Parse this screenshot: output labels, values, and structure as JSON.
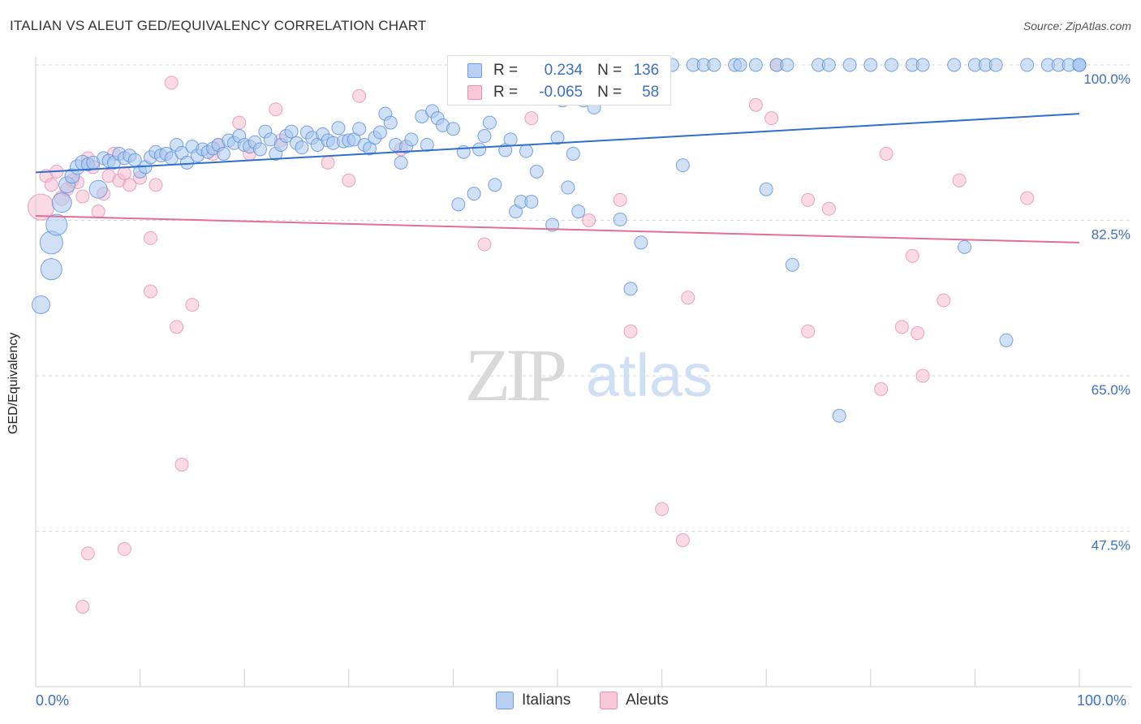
{
  "title": "ITALIAN VS ALEUT GED/EQUIVALENCY CORRELATION CHART",
  "source": "Source: ZipAtlas.com",
  "watermark": {
    "zip": "ZIP",
    "atlas": "atlas"
  },
  "colors": {
    "blue": "#3b70c4",
    "blue_fill": "#a9c8ef",
    "blue_line": "#2f6fd0",
    "pink": "#e05a8a",
    "pink_fill": "#f6bcd0",
    "pink_line": "#e56d96",
    "grid": "#d8d8d8"
  },
  "legend": {
    "rows": [
      {
        "r_label": "R =",
        "r_value": "0.234",
        "n_label": "N =",
        "n_value": "136",
        "series": "Italians"
      },
      {
        "r_label": "R =",
        "r_value": "-0.065",
        "n_label": "N =",
        "n_value": "58",
        "series": "Aleuts"
      }
    ]
  },
  "bottom_legend": [
    "Italians",
    "Aleuts"
  ],
  "chart_data": {
    "type": "scatter",
    "title": "ITALIAN VS ALEUT GED/EQUIVALENCY CORRELATION CHART",
    "xlabel": "",
    "ylabel": "GED/Equivalency",
    "xlim": [
      0,
      100
    ],
    "ylim": [
      30,
      101
    ],
    "x_tick_labels": [
      "0.0%",
      "100.0%"
    ],
    "y_tick_labels": [
      "100.0%",
      "82.5%",
      "65.0%",
      "47.5%"
    ],
    "y_ticks": [
      100,
      82.5,
      65,
      47.5
    ],
    "grid": "horizontal dashed",
    "legend_position": "top-center",
    "series": [
      {
        "name": "Italians",
        "trend": {
          "x": [
            0,
            100
          ],
          "y": [
            87.9,
            94.5
          ]
        },
        "points": [
          [
            0.5,
            73.0,
            11
          ],
          [
            1.5,
            77.0,
            13
          ],
          [
            1.5,
            80.0,
            14
          ],
          [
            2,
            82.0,
            13
          ],
          [
            2.5,
            84.5,
            12
          ],
          [
            3,
            86.5,
            10
          ],
          [
            3.5,
            87.5,
            9
          ],
          [
            4,
            88.5,
            9
          ],
          [
            4.5,
            89.0,
            9
          ],
          [
            5,
            88.8,
            8
          ],
          [
            5.5,
            89.0,
            8
          ],
          [
            6,
            86.0,
            11
          ],
          [
            6.5,
            89.5,
            8
          ],
          [
            7,
            89.2,
            8
          ],
          [
            7.5,
            89.0,
            8
          ],
          [
            8,
            90.0,
            8
          ],
          [
            8.5,
            89.5,
            8
          ],
          [
            9,
            89.8,
            8
          ],
          [
            9.5,
            89.3,
            8
          ],
          [
            10,
            88.0,
            8
          ],
          [
            10.5,
            88.5,
            8
          ],
          [
            11,
            89.6,
            8
          ],
          [
            11.5,
            90.2,
            8
          ],
          [
            12,
            89.8,
            8
          ],
          [
            12.5,
            90.0,
            8
          ],
          [
            13,
            89.5,
            8
          ],
          [
            13.5,
            91.0,
            8
          ],
          [
            14,
            90.1,
            8
          ],
          [
            14.5,
            89.0,
            8
          ],
          [
            15,
            90.8,
            8
          ],
          [
            15.5,
            89.8,
            8
          ],
          [
            16,
            90.5,
            8
          ],
          [
            16.5,
            90.2,
            8
          ],
          [
            17,
            90.6,
            8
          ],
          [
            17.5,
            91.0,
            8
          ],
          [
            18,
            90.0,
            8
          ],
          [
            18.5,
            91.5,
            8
          ],
          [
            19,
            91.2,
            8
          ],
          [
            19.5,
            92.0,
            8
          ],
          [
            20,
            91.0,
            8
          ],
          [
            20.5,
            90.8,
            8
          ],
          [
            21,
            91.3,
            8
          ],
          [
            21.5,
            90.5,
            8
          ],
          [
            22,
            92.5,
            8
          ],
          [
            22.5,
            91.6,
            8
          ],
          [
            23,
            90.0,
            8
          ],
          [
            23.5,
            91.0,
            8
          ],
          [
            24,
            92.0,
            8
          ],
          [
            24.5,
            92.5,
            8
          ],
          [
            25,
            91.2,
            8
          ],
          [
            25.5,
            90.7,
            8
          ],
          [
            26,
            92.4,
            8
          ],
          [
            26.5,
            91.8,
            8
          ],
          [
            27,
            91.0,
            8
          ],
          [
            27.5,
            92.2,
            8
          ],
          [
            28,
            91.5,
            8
          ],
          [
            28.5,
            91.2,
            8
          ],
          [
            29,
            92.9,
            8
          ],
          [
            29.5,
            91.4,
            8
          ],
          [
            30,
            91.5,
            8
          ],
          [
            30.5,
            91.6,
            8
          ],
          [
            31,
            92.8,
            8
          ],
          [
            31.5,
            91.0,
            8
          ],
          [
            32,
            90.6,
            8
          ],
          [
            32.5,
            91.8,
            8
          ],
          [
            33,
            92.4,
            8
          ],
          [
            33.5,
            94.5,
            8
          ],
          [
            34,
            93.5,
            8
          ],
          [
            34.5,
            91.0,
            8
          ],
          [
            35,
            89.0,
            8
          ],
          [
            35.5,
            90.8,
            8
          ],
          [
            36,
            91.6,
            8
          ],
          [
            37,
            94.2,
            8
          ],
          [
            37.5,
            91.0,
            8
          ],
          [
            38,
            94.8,
            8
          ],
          [
            38.5,
            94.0,
            8
          ],
          [
            39,
            93.2,
            8
          ],
          [
            40,
            92.8,
            8
          ],
          [
            40.5,
            84.3,
            8
          ],
          [
            41,
            90.2,
            8
          ],
          [
            42,
            85.5,
            8
          ],
          [
            42.5,
            90.5,
            8
          ],
          [
            43,
            92.0,
            8
          ],
          [
            43.5,
            93.5,
            8
          ],
          [
            44,
            86.5,
            8
          ],
          [
            45,
            90.4,
            8
          ],
          [
            45.5,
            91.6,
            8
          ],
          [
            46,
            83.5,
            8
          ],
          [
            46.5,
            84.6,
            8
          ],
          [
            47,
            90.3,
            8
          ],
          [
            47.5,
            84.6,
            8
          ],
          [
            48,
            88.0,
            8
          ],
          [
            49,
            100.0,
            8
          ],
          [
            49.5,
            82.0,
            8
          ],
          [
            50,
            91.8,
            8
          ],
          [
            50.5,
            96.0,
            8
          ],
          [
            51,
            86.2,
            8
          ],
          [
            51.5,
            90.0,
            8
          ],
          [
            52,
            83.5,
            8
          ],
          [
            52.5,
            96.0,
            8
          ],
          [
            53,
            97.5,
            8
          ],
          [
            53.5,
            95.2,
            8
          ],
          [
            55,
            100.0,
            8
          ],
          [
            55.5,
            100.0,
            8
          ],
          [
            56,
            82.6,
            8
          ],
          [
            56.5,
            100.0,
            8
          ],
          [
            57,
            74.8,
            8
          ],
          [
            58,
            80.0,
            8
          ],
          [
            59,
            100.0,
            8
          ],
          [
            60,
            100.0,
            8
          ],
          [
            61,
            100.0,
            8
          ],
          [
            62,
            88.7,
            8
          ],
          [
            63,
            100.0,
            8
          ],
          [
            64,
            100.0,
            8
          ],
          [
            65,
            100.0,
            8
          ],
          [
            67,
            100.0,
            8
          ],
          [
            67.5,
            100.0,
            8
          ],
          [
            69,
            100.0,
            8
          ],
          [
            70,
            86.0,
            8
          ],
          [
            71,
            100.0,
            8
          ],
          [
            72,
            100.0,
            8
          ],
          [
            72.5,
            77.5,
            8
          ],
          [
            75,
            100.0,
            8
          ],
          [
            76,
            100.0,
            8
          ],
          [
            77,
            60.5,
            8
          ],
          [
            78,
            100.0,
            8
          ],
          [
            80,
            100.0,
            8
          ],
          [
            82,
            100.0,
            8
          ],
          [
            84,
            100.0,
            8
          ],
          [
            85,
            100.0,
            8
          ],
          [
            88,
            100.0,
            8
          ],
          [
            89,
            79.5,
            8
          ],
          [
            90,
            100.0,
            8
          ],
          [
            91,
            100.0,
            8
          ],
          [
            92,
            100.0,
            8
          ],
          [
            93,
            69.0,
            8
          ],
          [
            95,
            100.0,
            8
          ],
          [
            97,
            100.0,
            8
          ],
          [
            98,
            100.0,
            8
          ],
          [
            99,
            100.0,
            8
          ],
          [
            100,
            100.0,
            8
          ],
          [
            101,
            100.0,
            8
          ],
          [
            102,
            100.0,
            8
          ]
        ]
      },
      {
        "name": "Aleuts",
        "trend": {
          "x": [
            0,
            100
          ],
          "y": [
            83.0,
            80.0
          ]
        },
        "points": [
          [
            0.5,
            84.0,
            16
          ],
          [
            1,
            87.5,
            8
          ],
          [
            1.5,
            86.5,
            8
          ],
          [
            2,
            88.0,
            8
          ],
          [
            2.5,
            85.0,
            9
          ],
          [
            3,
            86.0,
            8
          ],
          [
            3.5,
            87.0,
            8
          ],
          [
            4,
            86.8,
            8
          ],
          [
            4.5,
            85.2,
            8
          ],
          [
            5,
            89.5,
            8
          ],
          [
            5.5,
            88.5,
            8
          ],
          [
            6,
            83.5,
            8
          ],
          [
            6.5,
            85.5,
            8
          ],
          [
            7,
            87.5,
            8
          ],
          [
            7.5,
            90.0,
            8
          ],
          [
            8,
            87.0,
            8
          ],
          [
            8.5,
            87.8,
            8
          ],
          [
            9,
            86.5,
            8
          ],
          [
            10,
            87.3,
            8
          ],
          [
            11,
            80.5,
            8
          ],
          [
            11,
            74.5,
            8
          ],
          [
            11.5,
            86.5,
            8
          ],
          [
            13,
            98.0,
            8
          ],
          [
            13.5,
            70.5,
            8
          ],
          [
            14,
            55.0,
            8
          ],
          [
            15,
            73.0,
            8
          ],
          [
            17,
            90.0,
            8
          ],
          [
            17.5,
            91.0,
            8
          ],
          [
            19.5,
            93.5,
            8
          ],
          [
            20.5,
            90.0,
            8
          ],
          [
            23,
            95.0,
            8
          ],
          [
            23.5,
            91.5,
            8
          ],
          [
            28,
            89.0,
            8
          ],
          [
            30,
            87.0,
            8
          ],
          [
            31,
            96.5,
            8
          ],
          [
            35,
            90.5,
            8
          ],
          [
            47.5,
            94.0,
            8
          ],
          [
            43,
            79.8,
            8
          ],
          [
            5,
            45.0,
            8
          ],
          [
            4.5,
            39.0,
            8
          ],
          [
            8.5,
            45.5,
            8
          ],
          [
            53,
            82.5,
            8
          ],
          [
            56,
            84.8,
            8
          ],
          [
            57,
            70.0,
            8
          ],
          [
            60,
            50.0,
            8
          ],
          [
            62,
            46.5,
            8
          ],
          [
            62.5,
            73.8,
            8
          ],
          [
            69,
            95.5,
            8
          ],
          [
            70.5,
            94.0,
            8
          ],
          [
            71,
            100.0,
            8
          ],
          [
            74,
            70.0,
            8
          ],
          [
            74,
            84.8,
            8
          ],
          [
            76,
            83.8,
            8
          ],
          [
            81,
            63.5,
            8
          ],
          [
            81.5,
            90.0,
            8
          ],
          [
            83,
            70.5,
            8
          ],
          [
            84,
            78.5,
            8
          ],
          [
            84.5,
            69.8,
            8
          ],
          [
            85,
            65.0,
            8
          ],
          [
            87,
            73.5,
            8
          ],
          [
            88.5,
            87.0,
            8
          ],
          [
            95,
            85.0,
            8
          ]
        ]
      }
    ]
  }
}
